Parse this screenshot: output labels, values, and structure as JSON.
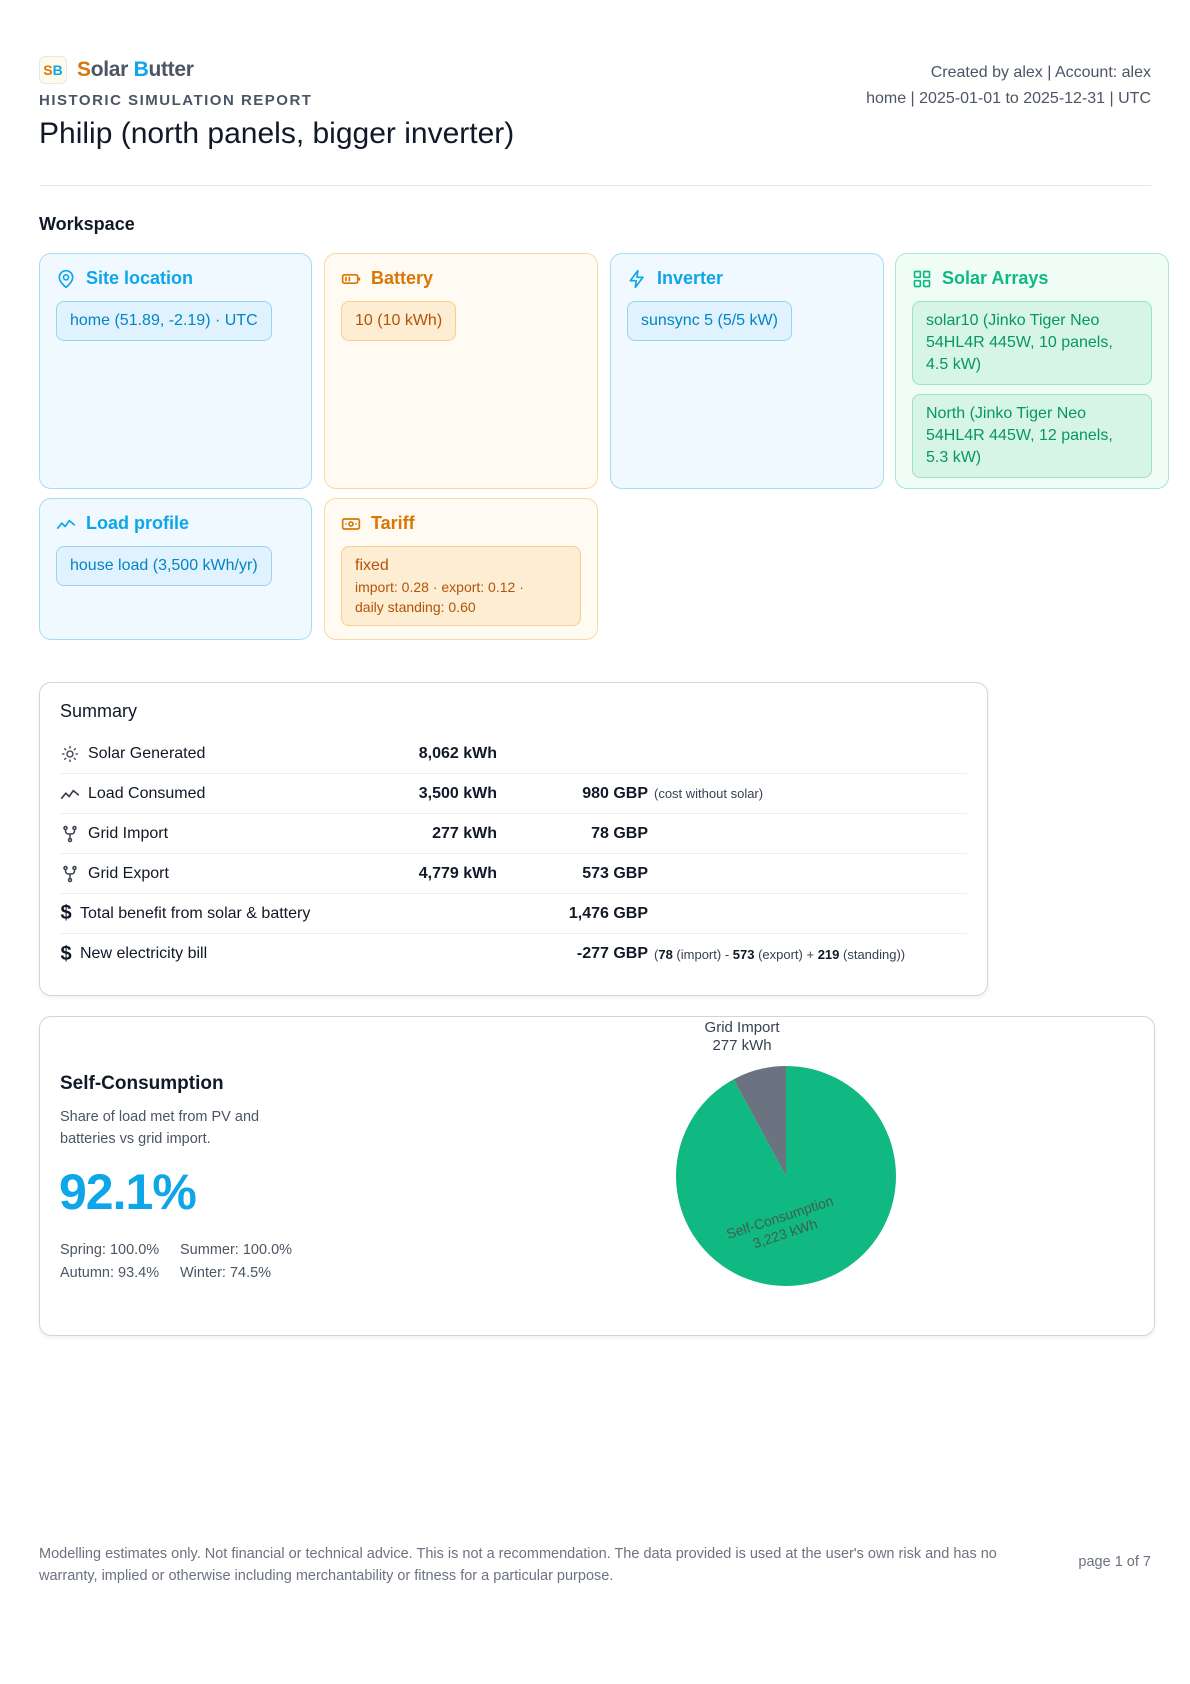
{
  "brand": {
    "mark": "SB",
    "name_first_letter": "S",
    "name_rest1": "olar ",
    "name_b": "B",
    "name_rest2": "utter"
  },
  "report": {
    "kind": "HISTORIC SIMULATION REPORT",
    "title": "Philip (north panels, bigger inverter)",
    "meta_line1": "Created by alex | Account: alex",
    "meta_line2": "home | 2025-01-01 to 2025-12-31 | UTC"
  },
  "workspace": {
    "title": "Workspace",
    "site": {
      "title": "Site location",
      "chip": "home (51.89, -2.19) · UTC"
    },
    "battery": {
      "title": "Battery",
      "chip": "10 (10 kWh)"
    },
    "inverter": {
      "title": "Inverter",
      "chip": "sunsync 5 (5/5 kW)"
    },
    "arrays": {
      "title": "Solar Arrays",
      "items": [
        "solar10 (Jinko Tiger Neo 54HL4R 445W, 10 panels, 4.5 kW)",
        "North (Jinko Tiger Neo 54HL4R 445W, 12 panels, 5.3 kW)"
      ]
    },
    "load": {
      "title": "Load profile",
      "chip": "house load (3,500 kWh/yr)"
    },
    "tariff": {
      "title": "Tariff",
      "name": "fixed",
      "detail1": "import: 0.28 · export: 0.12 ·",
      "detail2": "daily standing: 0.60"
    }
  },
  "summary": {
    "title": "Summary",
    "rows": [
      {
        "icon": "sun-icon",
        "label": "Solar Generated",
        "kwh": "8,062 kWh",
        "gbp": "",
        "note": ""
      },
      {
        "icon": "trend-icon",
        "label": "Load Consumed",
        "kwh": "3,500 kWh",
        "gbp": "980 GBP",
        "note": "(cost without solar)"
      },
      {
        "icon": "fork-icon",
        "label": "Grid Import",
        "kwh": "277 kWh",
        "gbp": "78 GBP",
        "note": ""
      },
      {
        "icon": "fork-icon",
        "label": "Grid Export",
        "kwh": "4,779 kWh",
        "gbp": "573 GBP",
        "note": ""
      },
      {
        "icon": "dollar-icon",
        "label": "Total benefit from solar & battery",
        "kwh": "",
        "gbp": "1,476 GBP",
        "note": ""
      },
      {
        "icon": "dollar-icon",
        "label": "New electricity bill",
        "kwh": "",
        "gbp": "-277 GBP",
        "note": ""
      }
    ],
    "bill_note": {
      "open": "(",
      "import_val": "78",
      "import_lbl": " (import) - ",
      "export_val": "573",
      "export_lbl": " (export) + ",
      "standing_val": "219",
      "standing_lbl": " (standing))"
    }
  },
  "self_consumption": {
    "title": "Self-Consumption",
    "description": "Share of load met from PV and batteries vs grid import.",
    "percent": "92.1%",
    "spring": "Spring: 100.0%",
    "summer": "Summer: 100.0%",
    "autumn": "Autumn: 93.4%",
    "winter": "Winter: 74.5%"
  },
  "chart_data": {
    "type": "pie",
    "title": "",
    "slices": [
      {
        "label": "Self-Consumption",
        "value": 3223,
        "display": "3,223 kWh",
        "color": "#10b981"
      },
      {
        "label": "Grid Import",
        "value": 277,
        "display": "277 kWh",
        "color": "#6b7280"
      }
    ]
  },
  "footer": {
    "disclaimer": "Modelling estimates only. Not financial or technical advice. This is not a recommendation. The data provided is used at the user's own risk and has no warranty, implied or otherwise including merchantability or fitness for a particular purpose.",
    "page": "page 1 of 7"
  }
}
